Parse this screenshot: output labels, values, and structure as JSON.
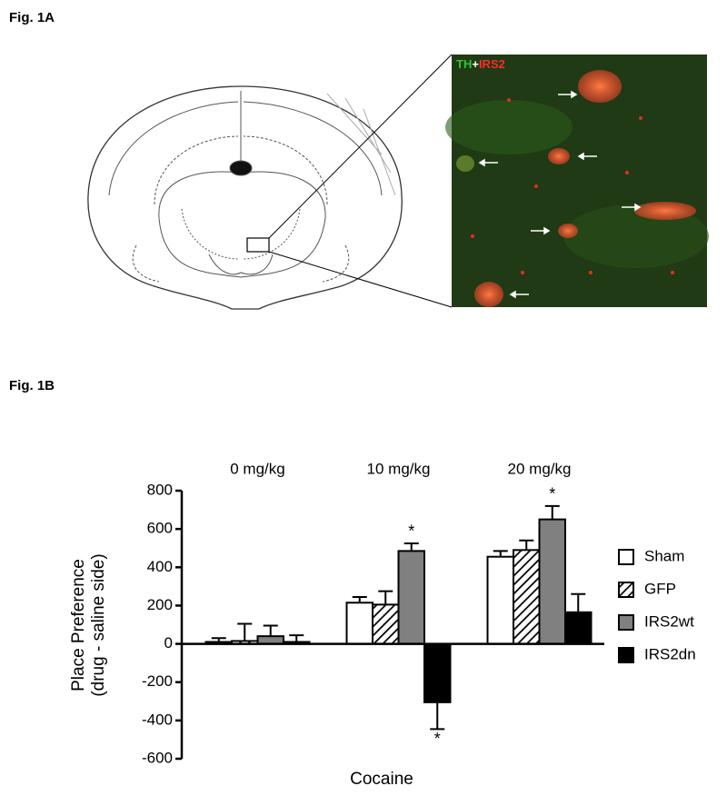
{
  "figure_labels": [
    "Fig. 1A",
    "Fig. 1B"
  ],
  "micrograph": {
    "label_parts": [
      "TH",
      "+",
      "IRS2"
    ]
  },
  "chart_data": {
    "type": "bar",
    "categories": [
      "0 mg/kg",
      "10 mg/kg",
      "20 mg/kg"
    ],
    "series": [
      {
        "name": "Sham",
        "color": "#ffffff",
        "values": [
          10,
          215,
          455
        ],
        "errors": [
          20,
          30,
          30
        ]
      },
      {
        "name": "GFP",
        "color": "#ffffff",
        "hatch": true,
        "values": [
          15,
          205,
          490
        ],
        "errors": [
          90,
          70,
          50
        ]
      },
      {
        "name": "IRS2wt",
        "color": "#808080",
        "values": [
          40,
          485,
          650
        ],
        "errors": [
          55,
          40,
          70
        ],
        "annotations": [
          null,
          "*",
          "*"
        ]
      },
      {
        "name": "IRS2dn",
        "color": "#000000",
        "values": [
          10,
          -305,
          165
        ],
        "errors": [
          35,
          140,
          95
        ],
        "annotations": [
          null,
          "*",
          null
        ]
      }
    ],
    "ylabel": [
      "Place Preference",
      "(drug - saline side)"
    ],
    "xlabel": "Cocaine",
    "ylim": [
      -600,
      800
    ],
    "yticks": [
      -600,
      -400,
      -200,
      0,
      200,
      400,
      600,
      800
    ],
    "legend": "right"
  }
}
